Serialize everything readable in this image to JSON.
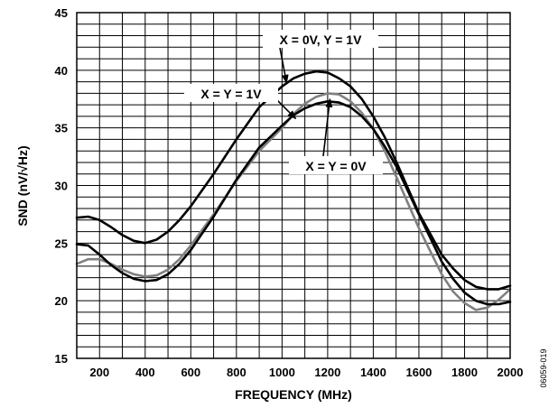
{
  "chart_data": {
    "type": "line",
    "xlabel": "FREQUENCY (MHz)",
    "ylabel": "SND (nV/√Hz)",
    "xlim": [
      100,
      2000
    ],
    "ylim": [
      15,
      45
    ],
    "xticks": [
      200,
      400,
      600,
      800,
      1000,
      1200,
      1400,
      1600,
      1800,
      2000
    ],
    "yticks": [
      15,
      20,
      25,
      30,
      35,
      40,
      45
    ],
    "grid": true,
    "series": [
      {
        "name": "X = 0V, Y = 1V",
        "color": "#000000",
        "x": [
          100,
          150,
          200,
          250,
          300,
          350,
          400,
          450,
          500,
          550,
          600,
          700,
          800,
          900,
          1000,
          1050,
          1100,
          1150,
          1200,
          1250,
          1300,
          1350,
          1400,
          1450,
          1500,
          1600,
          1700,
          1750,
          1800,
          1850,
          1900,
          1950,
          2000
        ],
        "values": [
          27.2,
          27.3,
          27.0,
          26.4,
          25.7,
          25.2,
          25.0,
          25.3,
          26.0,
          27.0,
          28.2,
          31.0,
          34.0,
          36.8,
          38.6,
          39.3,
          39.7,
          39.9,
          39.8,
          39.3,
          38.6,
          37.5,
          36.0,
          34.2,
          32.1,
          27.6,
          24.0,
          22.8,
          21.8,
          21.2,
          21.0,
          21.0,
          21.3
        ]
      },
      {
        "name": "X = Y = 1V",
        "color": "#000000",
        "x": [
          100,
          150,
          200,
          250,
          300,
          350,
          400,
          450,
          500,
          550,
          600,
          700,
          800,
          900,
          1000,
          1050,
          1100,
          1150,
          1200,
          1250,
          1300,
          1350,
          1400,
          1450,
          1500,
          1600,
          1700,
          1750,
          1800,
          1850,
          1900,
          1950,
          2000
        ],
        "values": [
          24.9,
          24.8,
          24.0,
          23.1,
          22.4,
          21.9,
          21.7,
          21.8,
          22.3,
          23.2,
          24.4,
          27.3,
          30.5,
          33.3,
          35.2,
          36.1,
          36.7,
          37.1,
          37.3,
          37.2,
          36.8,
          36.0,
          34.9,
          33.4,
          31.7,
          27.5,
          23.4,
          21.9,
          20.7,
          20.0,
          19.7,
          19.7,
          19.9
        ]
      },
      {
        "name": "X = Y = 0V",
        "color": "#808080",
        "x": [
          100,
          150,
          200,
          250,
          300,
          350,
          400,
          450,
          500,
          550,
          600,
          700,
          800,
          900,
          1000,
          1050,
          1100,
          1150,
          1200,
          1250,
          1300,
          1350,
          1400,
          1450,
          1500,
          1600,
          1700,
          1750,
          1800,
          1850,
          1900,
          1950,
          2000
        ],
        "values": [
          23.2,
          23.6,
          23.6,
          23.2,
          22.7,
          22.3,
          22.1,
          22.2,
          22.7,
          23.6,
          24.8,
          27.5,
          30.4,
          33.0,
          35.0,
          36.2,
          37.1,
          37.7,
          38.0,
          37.9,
          37.3,
          36.3,
          34.9,
          33.0,
          30.8,
          26.3,
          22.3,
          20.8,
          19.8,
          19.2,
          19.4,
          20.1,
          21.0
        ]
      }
    ],
    "annotations": [
      {
        "text": "X = 0V, Y = 1V",
        "target_x": 1020,
        "target_y": 38.9
      },
      {
        "text": "X = Y = 1V",
        "target_x": 1060,
        "target_y": 35.8
      },
      {
        "text": "X = Y = 0V",
        "target_x": 1210,
        "target_y": 37.5
      }
    ]
  },
  "figure_id": "06059-019"
}
